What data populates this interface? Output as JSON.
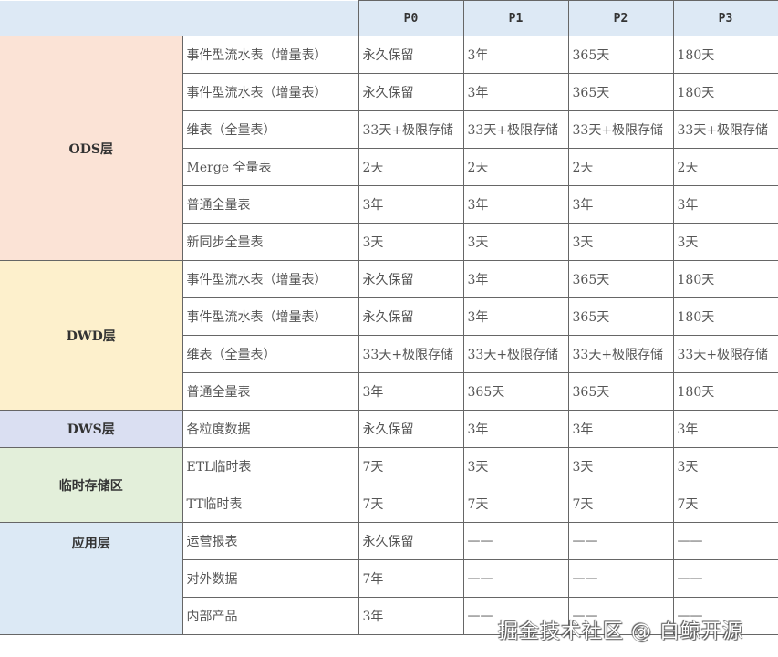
{
  "table": {
    "headers": [
      "",
      "",
      "P0",
      "P1",
      "P2",
      "P3"
    ],
    "layer_colors": {
      "ODS层": "#fbe3d6",
      "DWD层": "#fdf0cc",
      "DWS层": "#dadff2",
      "临时存储区": "#e3efda",
      "应用层": "#dce9f5"
    },
    "groups": [
      {
        "layer": "ODS层",
        "rows": [
          {
            "type": "事件型流水表（增量表）",
            "values": [
              "永久保留",
              "3年",
              "365天",
              "180天"
            ]
          },
          {
            "type": "事件型流水表（增量表）",
            "values": [
              "永久保留",
              "3年",
              "365天",
              "180天"
            ]
          },
          {
            "type": "维表（全量表）",
            "values": [
              "33天+极限存储",
              "33天+极限存储",
              "33天+极限存储",
              "33天+极限存储"
            ]
          },
          {
            "type": "Merge 全量表",
            "values": [
              "2天",
              "2天",
              "2天",
              "2天"
            ]
          },
          {
            "type": "普通全量表",
            "values": [
              "3年",
              "3年",
              "3年",
              "3年"
            ]
          },
          {
            "type": "新同步全量表",
            "values": [
              "3天",
              "3天",
              "3天",
              "3天"
            ]
          }
        ]
      },
      {
        "layer": "DWD层",
        "rows": [
          {
            "type": "事件型流水表（增量表）",
            "values": [
              "永久保留",
              "3年",
              "365天",
              "180天"
            ]
          },
          {
            "type": "事件型流水表（增量表）",
            "values": [
              "永久保留",
              "3年",
              "365天",
              "180天"
            ]
          },
          {
            "type": "维表（全量表）",
            "values": [
              "33天+极限存储",
              "33天+极限存储",
              "33天+极限存储",
              "33天+极限存储"
            ]
          },
          {
            "type": "普通全量表",
            "values": [
              "3年",
              "365天",
              "365天",
              "180天"
            ]
          }
        ]
      },
      {
        "layer": "DWS层",
        "rows": [
          {
            "type": "各粒度数据",
            "values": [
              "永久保留",
              "3年",
              "3年",
              "3年"
            ]
          }
        ]
      },
      {
        "layer": "临时存储区",
        "rows": [
          {
            "type": "ETL临时表",
            "values": [
              "7天",
              "3天",
              "3天",
              "3天"
            ]
          },
          {
            "type": "TT临时表",
            "values": [
              "7天",
              "7天",
              "7天",
              "7天"
            ]
          }
        ]
      },
      {
        "layer": "应用层",
        "label_top": true,
        "rows": [
          {
            "type": "运营报表",
            "values": [
              "永久保留",
              "——",
              "——",
              "——"
            ]
          },
          {
            "type": "对外数据",
            "values": [
              "7年",
              "——",
              "——",
              "——"
            ]
          },
          {
            "type": "内部产品",
            "values": [
              "3年",
              "——",
              "——",
              "——"
            ]
          }
        ]
      }
    ]
  },
  "watermark": "掘金技术社区 @ 白鲸开源"
}
